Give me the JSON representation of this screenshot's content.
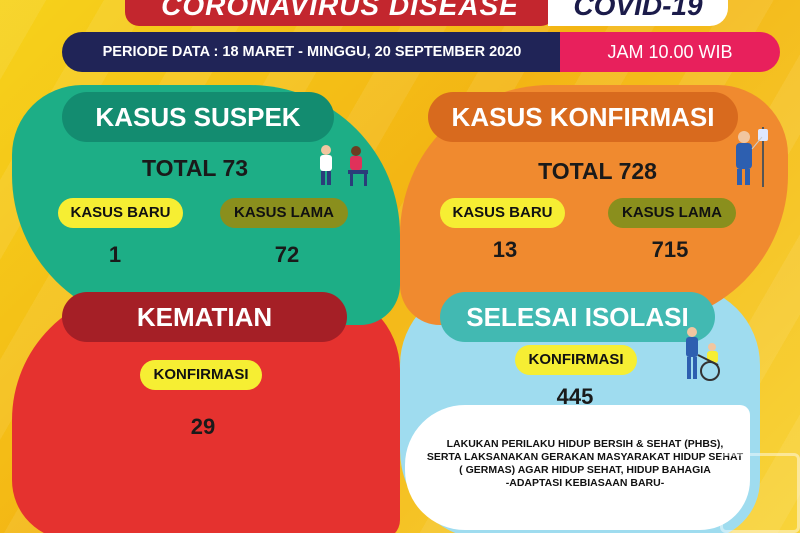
{
  "header": {
    "title": "CORONAVIRUS DISEASE",
    "badge": "COVID-19",
    "periode": "PERIODE DATA : 18 MARET - MINGGU, 20 SEPTEMBER 2020",
    "jam": "JAM 10.00 WIB"
  },
  "suspek": {
    "title": "KASUS SUSPEK",
    "total": "TOTAL 73",
    "baru_label": "KASUS BARU",
    "lama_label": "KASUS LAMA",
    "baru_value": "1",
    "lama_value": "72"
  },
  "konfirmasi": {
    "title": "KASUS KONFIRMASI",
    "total": "TOTAL 728",
    "baru_label": "KASUS BARU",
    "lama_label": "KASUS LAMA",
    "baru_value": "13",
    "lama_value": "715"
  },
  "kematian": {
    "title": "KEMATIAN",
    "label": "KONFIRMASI",
    "value": "29"
  },
  "isolasi": {
    "title": "SELESAI ISOLASI",
    "label": "KONFIRMASI",
    "value": "445"
  },
  "note": {
    "line1": "LAKUKAN PERILAKU HIDUP BERSIH & SEHAT (PHBS),",
    "line2": "SERTA LAKSANAKAN GERAKAN MASYARAKAT HIDUP SEHAT",
    "line3": "( GERMAS) AGAR HIDUP SEHAT, HIDUP BAHAGIA",
    "line4": "-ADAPTASI KEBIASAAN BARU-"
  },
  "icons": {
    "suspek": "doctor-patient-icon",
    "konfirmasi": "patient-iv-icon",
    "isolasi": "wheelchair-icon"
  },
  "colors": {
    "green": "#1dae86",
    "orange": "#f08a2f",
    "red": "#e5322f",
    "blue": "#9fdcef",
    "navy": "#202457",
    "pink": "#e8205c"
  }
}
